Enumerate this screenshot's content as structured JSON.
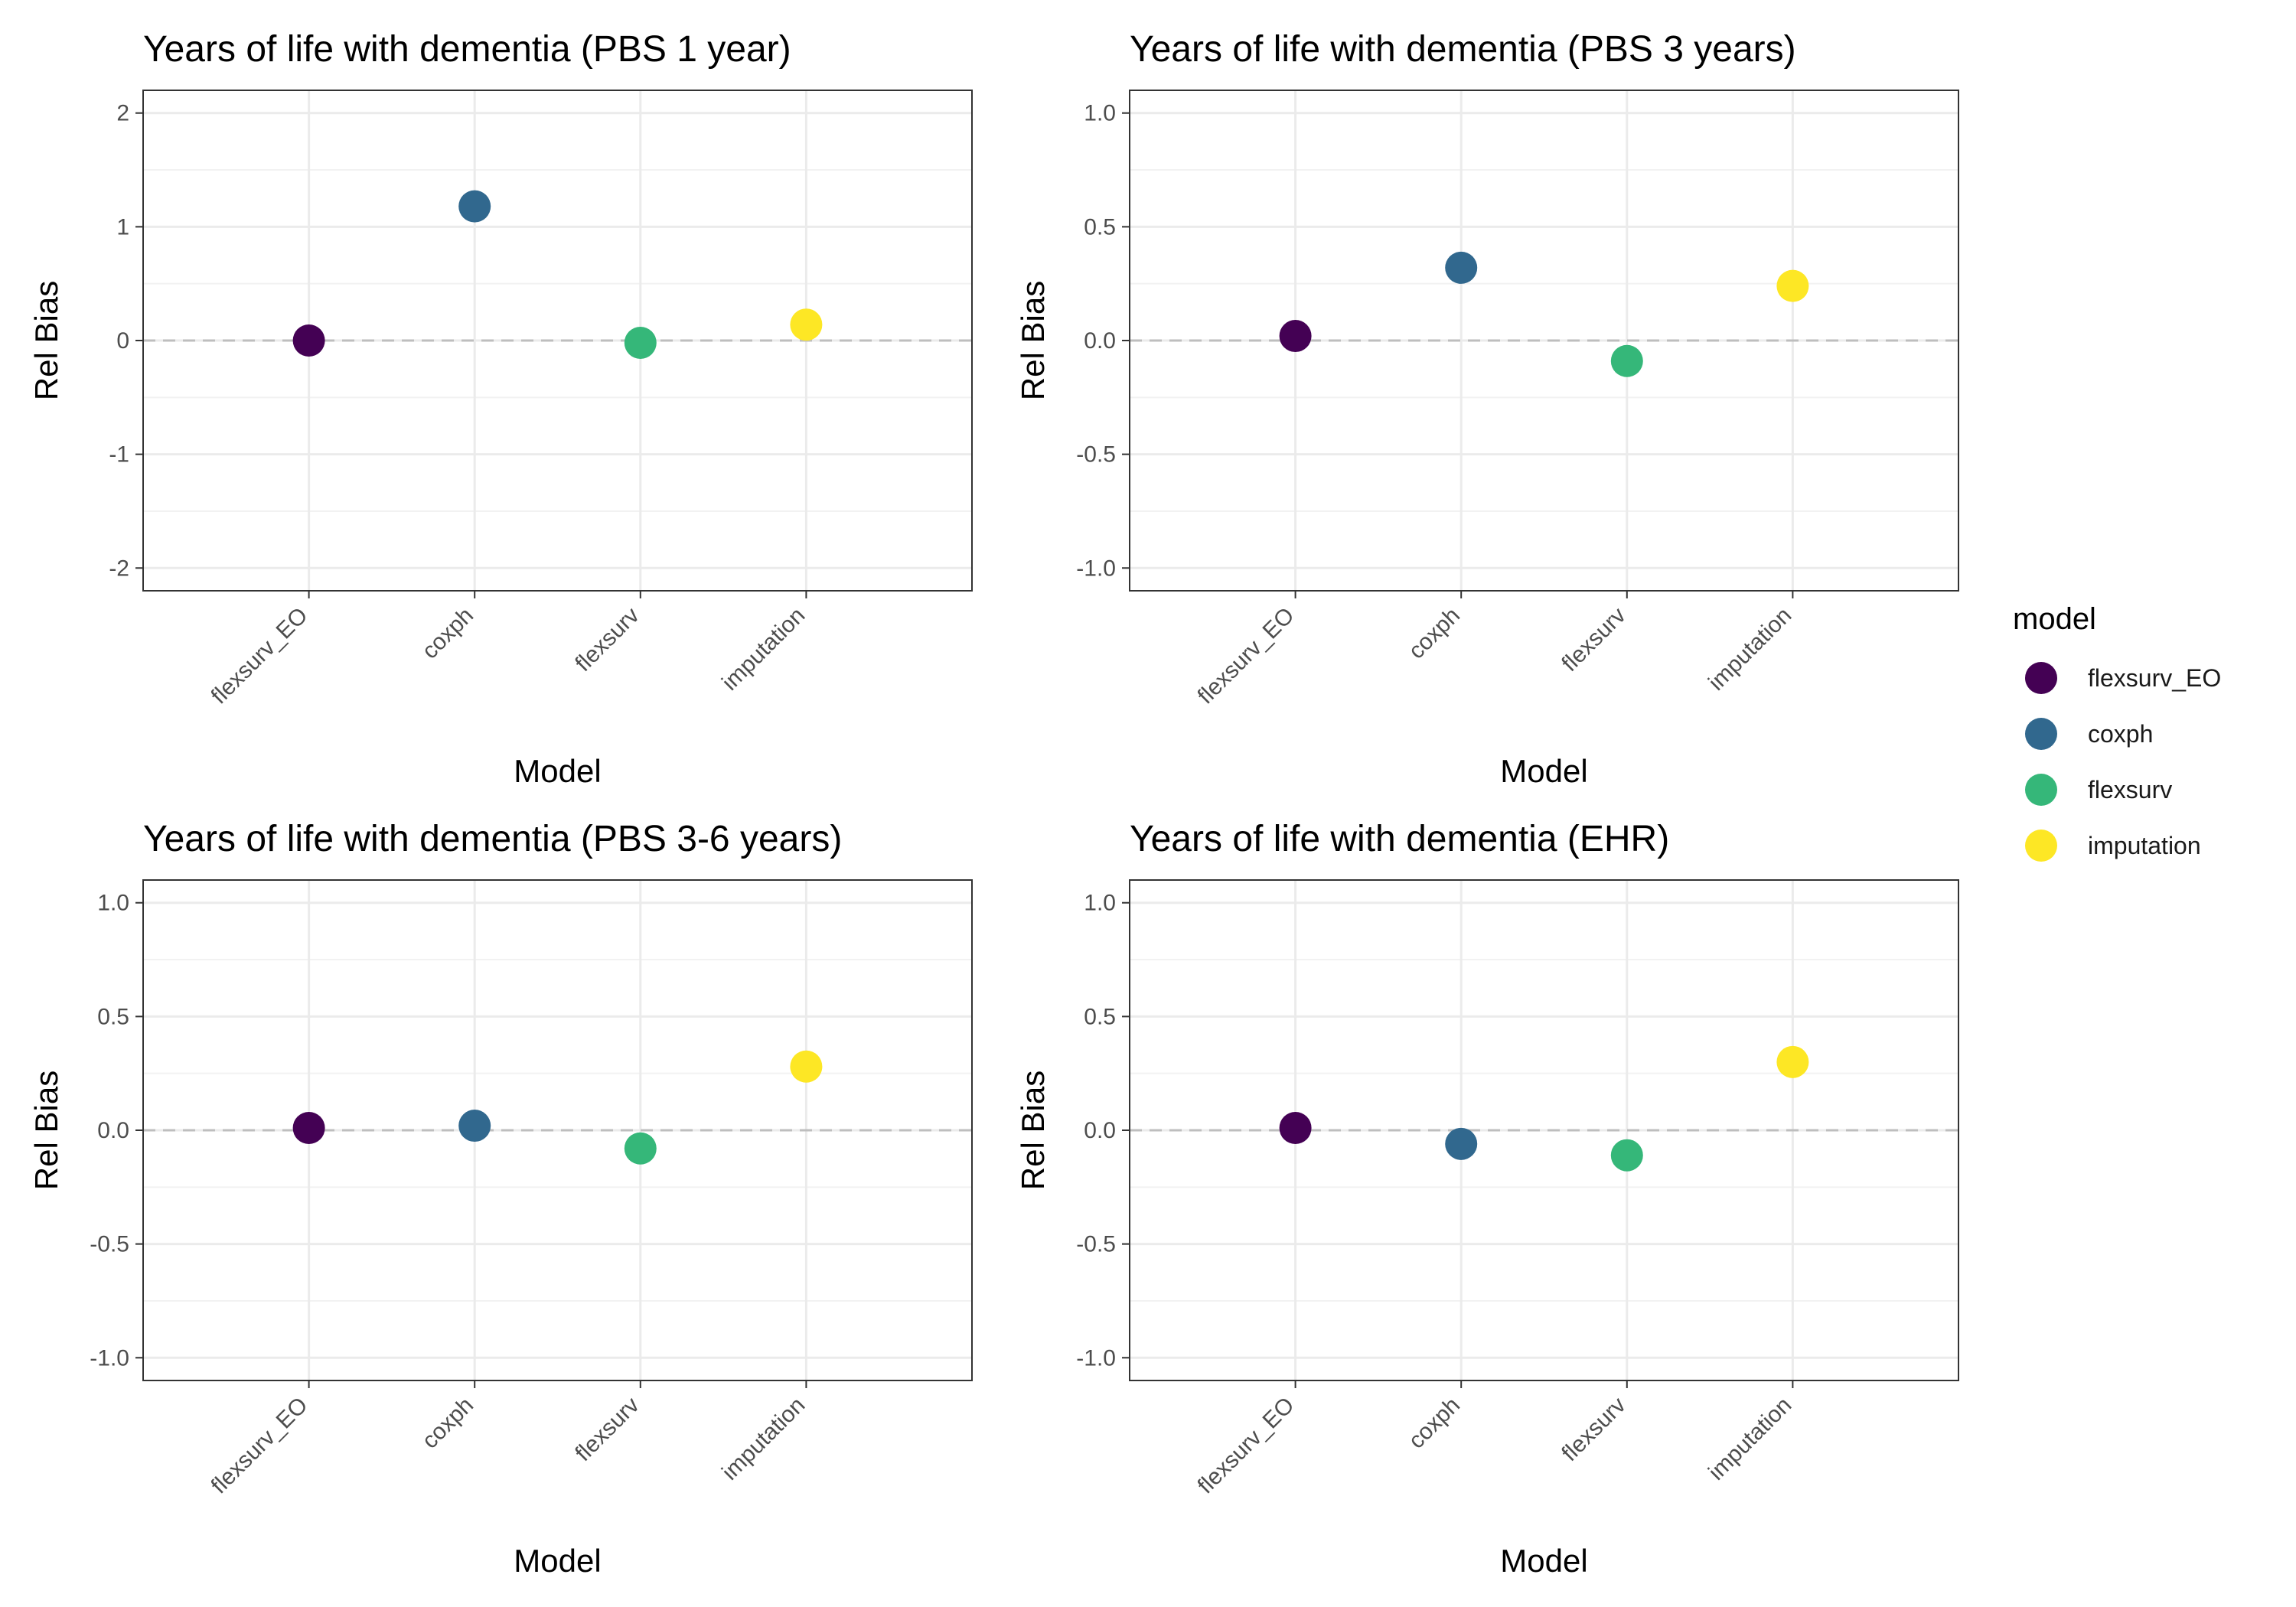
{
  "chart_data": [
    {
      "type": "scatter",
      "title": "Years of life with dementia (PBS 1 year)",
      "xlabel": "Model",
      "ylabel": "Rel Bias",
      "categories": [
        "flexsurv_EO",
        "coxph",
        "flexsurv",
        "imputation"
      ],
      "values": [
        0.0,
        1.18,
        -0.02,
        0.14
      ],
      "ylim": [
        -2.2,
        2.2
      ],
      "yticks": [
        -2,
        -1,
        0,
        1,
        2
      ],
      "ytick_labels": [
        "-2",
        "-1",
        "0",
        "1",
        "2"
      ],
      "reference_line": 0,
      "grid": true
    },
    {
      "type": "scatter",
      "title": "Years of life with dementia (PBS 3 years)",
      "xlabel": "Model",
      "ylabel": "Rel Bias",
      "categories": [
        "flexsurv_EO",
        "coxph",
        "flexsurv",
        "imputation"
      ],
      "values": [
        0.02,
        0.32,
        -0.09,
        0.24
      ],
      "ylim": [
        -1.1,
        1.1
      ],
      "yticks": [
        -1.0,
        -0.5,
        0.0,
        0.5,
        1.0
      ],
      "ytick_labels": [
        "-1.0",
        "-0.5",
        "0.0",
        "0.5",
        "1.0"
      ],
      "reference_line": 0,
      "grid": true
    },
    {
      "type": "scatter",
      "title": "Years of life with dementia (PBS 3-6 years)",
      "xlabel": "Model",
      "ylabel": "Rel Bias",
      "categories": [
        "flexsurv_EO",
        "coxph",
        "flexsurv",
        "imputation"
      ],
      "values": [
        0.01,
        0.02,
        -0.08,
        0.28
      ],
      "ylim": [
        -1.1,
        1.1
      ],
      "yticks": [
        -1.0,
        -0.5,
        0.0,
        0.5,
        1.0
      ],
      "ytick_labels": [
        "-1.0",
        "-0.5",
        "0.0",
        "0.5",
        "1.0"
      ],
      "reference_line": 0,
      "grid": true
    },
    {
      "type": "scatter",
      "title": "Years of life with dementia (EHR)",
      "xlabel": "Model",
      "ylabel": "Rel Bias",
      "categories": [
        "flexsurv_EO",
        "coxph",
        "flexsurv",
        "imputation"
      ],
      "values": [
        0.01,
        -0.06,
        -0.11,
        0.3
      ],
      "ylim": [
        -1.1,
        1.1
      ],
      "yticks": [
        -1.0,
        -0.5,
        0.0,
        0.5,
        1.0
      ],
      "ytick_labels": [
        "-1.0",
        "-0.5",
        "0.0",
        "0.5",
        "1.0"
      ],
      "reference_line": 0,
      "grid": true
    }
  ],
  "legend": {
    "title": "model",
    "placement": "right",
    "items": [
      {
        "label": "flexsurv_EO",
        "color": "#440154"
      },
      {
        "label": "coxph",
        "color": "#31688E"
      },
      {
        "label": "flexsurv",
        "color": "#35B779"
      },
      {
        "label": "imputation",
        "color": "#FDE725"
      }
    ]
  }
}
